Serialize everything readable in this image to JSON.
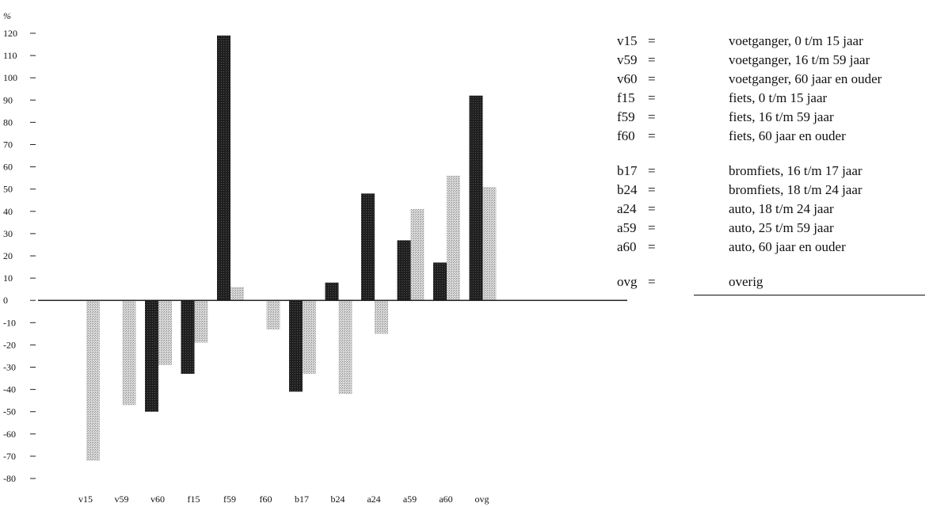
{
  "chart_data": {
    "type": "bar",
    "unit_label": "%",
    "ylim": [
      -80,
      120
    ],
    "yticks": [
      120,
      110,
      100,
      90,
      80,
      70,
      60,
      50,
      40,
      30,
      20,
      10,
      0,
      -10,
      -20,
      -30,
      -40,
      -50,
      -60,
      -70,
      -80
    ],
    "categories": [
      "v15",
      "v59",
      "v60",
      "f15",
      "f59",
      "f60",
      "b17",
      "b24",
      "a24",
      "a59",
      "a60",
      "ovg"
    ],
    "series": [
      {
        "color": "#1a1a1a",
        "values": [
          0,
          0,
          -50,
          -33,
          119,
          0,
          -41,
          8,
          48,
          27,
          17,
          92
        ]
      },
      {
        "color": "#c4c4c4",
        "values": [
          -72,
          -47,
          -29,
          -19,
          6,
          -13,
          -33,
          -42,
          -15,
          41,
          56,
          51
        ]
      }
    ],
    "grid": false
  },
  "legend": {
    "entries": [
      {
        "code": "v15",
        "desc": "voetganger, 0 t/m 15 jaar"
      },
      {
        "code": "v59",
        "desc": "voetganger, 16 t/m 59 jaar"
      },
      {
        "code": "v60",
        "desc": "voetganger, 60 jaar en ouder"
      },
      {
        "code": "f15",
        "desc": "fiets, 0 t/m 15 jaar"
      },
      {
        "code": "f59",
        "desc": "fiets, 16 t/m 59 jaar"
      },
      {
        "code": "f60",
        "desc": "fiets, 60 jaar en ouder"
      },
      {
        "code": "b17",
        "desc": "bromfiets, 16 t/m 17 jaar"
      },
      {
        "code": "b24",
        "desc": "bromfiets, 18 t/m 24 jaar"
      },
      {
        "code": "a24",
        "desc": "auto, 18 t/m 24 jaar"
      },
      {
        "code": "a59",
        "desc": "auto, 25 t/m 59 jaar"
      },
      {
        "code": "a60",
        "desc": "auto, 60 jaar en ouder"
      },
      {
        "code": "ovg",
        "desc": "overig"
      }
    ],
    "equals": "="
  }
}
